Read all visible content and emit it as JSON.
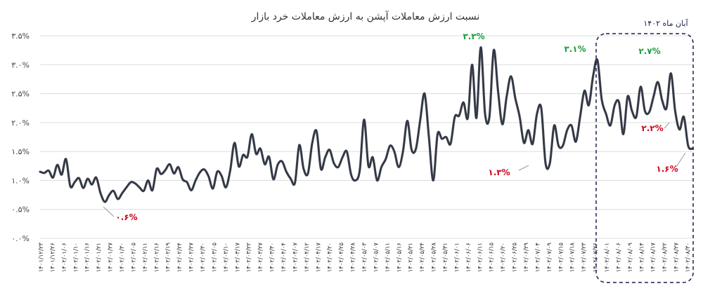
{
  "chart_data": {
    "type": "line",
    "title": "نسبت ارزش معاملات آپشن به ارزش معاملات خرد بازار",
    "ylim": [
      0,
      3.5
    ],
    "yticks": [
      "۰.۰%",
      "۰.۵%",
      "۱.۰%",
      "۱.۵%",
      "۲.۰%",
      "۲.۵%",
      "۳.۰%",
      "۳.۵%"
    ],
    "grid": true,
    "line_color": "#2d3340",
    "x_tick_labels": [
      "۱۴۰۱/۱۲/۲۳",
      "۱۴۰۱/۱۲/۲۶",
      "۱۴۰۲/۰۱/۰۶",
      "۱۴۰۲/۰۱/۱۰",
      "۱۴۰۲/۰۱/۱۶",
      "۱۴۰۲/۰۱/۲۱",
      "۱۴۰۲/۰۱/۲۷",
      "۱۴۰۲/۰۱/۳۰",
      "۱۴۰۲/۰۲/۰۵",
      "۱۴۰۲/۰۲/۱۱",
      "۱۴۰۲/۰۲/۱۶",
      "۱۴۰۲/۰۲/۱۹",
      "۱۴۰۲/۰۲/۲۴",
      "۱۴۰۲/۰۲/۲۷",
      "۱۴۰۲/۰۲/۳۰",
      "۱۴۰۲/۰۳/۰۵",
      "۱۴۰۲/۰۳/۱۰",
      "۱۴۰۲/۰۳/۱۷",
      "۱۴۰۲/۰۳/۲۲",
      "۱۴۰۲/۰۳/۲۷",
      "۱۴۰۲/۰۳/۳۰",
      "۱۴۰۲/۰۴/۰۴",
      "۱۴۰۲/۰۴/۰۷",
      "۱۴۰۲/۰۴/۱۲",
      "۱۴۰۲/۰۴/۱۷",
      "۱۴۰۲/۰۴/۲۰",
      "۱۴۰۲/۰۴/۲۵",
      "۱۴۰۲/۰۴/۲۸",
      "۱۴۰۲/۰۵/۰۳",
      "۱۴۰۲/۰۵/۰۷",
      "۱۴۰۲/۰۵/۱۱",
      "۱۴۰۲/۰۵/۱۶",
      "۱۴۰۲/۰۵/۲۱",
      "۱۴۰۲/۰۵/۲۴",
      "۱۴۰۲/۰۵/۲۸",
      "۱۴۰۲/۰۵/۳۱",
      "۱۴۰۲/۰۶/۰۱",
      "۱۴۰۲/۰۶/۰۶",
      "۱۴۰۲/۰۶/۱۱",
      "۱۴۰۲/۰۶/۱۵",
      "۱۴۰۲/۰۶/۲۰",
      "۱۴۰۲/۰۶/۲۵",
      "۱۴۰۲/۰۶/۲۹",
      "۱۴۰۲/۰۷/۰۴",
      "۱۴۰۲/۰۷/۰۹",
      "۱۴۰۲/۰۷/۱۵",
      "۱۴۰۲/۰۷/۱۸",
      "۱۴۰۲/۰۷/۲۳",
      "۱۴۰۲/۰۷/۲۶",
      "۱۴۰۲/۰۸/۰۱",
      "۱۴۰۲/۰۸/۰۶",
      "۱۴۰۲/۰۸/۰۹",
      "۱۴۰۲/۰۸/۱۴",
      "۱۴۰۲/۰۸/۱۷",
      "۱۴۰۲/۰۸/۲۲",
      "۱۴۰۲/۰۸/۲۷",
      "۱۴۰۲/۰۸/۳۰"
    ],
    "values": [
      1.15,
      1.13,
      1.17,
      1.05,
      1.27,
      1.1,
      1.37,
      0.9,
      0.97,
      1.04,
      0.87,
      1.03,
      0.93,
      1.05,
      0.78,
      0.63,
      0.75,
      0.82,
      0.68,
      0.78,
      0.88,
      0.97,
      0.95,
      0.88,
      0.82,
      1.0,
      0.83,
      1.2,
      1.11,
      1.18,
      1.28,
      1.12,
      1.23,
      1.02,
      0.97,
      0.83,
      1.0,
      1.14,
      1.19,
      1.07,
      0.86,
      1.15,
      1.08,
      0.88,
      1.17,
      1.65,
      1.24,
      1.44,
      1.41,
      1.8,
      1.46,
      1.55,
      1.28,
      1.41,
      1.02,
      1.27,
      1.33,
      1.15,
      1.03,
      0.96,
      1.61,
      1.2,
      1.12,
      1.65,
      1.85,
      1.2,
      1.4,
      1.53,
      1.3,
      1.23,
      1.4,
      1.5,
      1.1,
      1.0,
      1.18,
      2.05,
      1.25,
      1.4,
      1.0,
      1.23,
      1.37,
      1.6,
      1.5,
      1.23,
      1.5,
      2.03,
      1.53,
      1.55,
      2.05,
      2.5,
      1.75,
      1.0,
      1.8,
      1.72,
      1.75,
      1.63,
      2.1,
      2.12,
      2.35,
      2.08,
      3.0,
      2.08,
      3.3,
      2.15,
      2.1,
      3.25,
      2.55,
      1.97,
      2.45,
      2.8,
      2.42,
      2.1,
      1.65,
      1.87,
      1.63,
      2.15,
      2.25,
      1.3,
      1.3,
      1.95,
      1.6,
      1.6,
      1.87,
      1.95,
      1.67,
      2.1,
      2.55,
      2.3,
      2.8,
      3.08,
      2.4,
      2.15,
      1.95,
      2.3,
      2.35,
      1.8,
      2.45,
      2.2,
      2.1,
      2.62,
      2.2,
      2.18,
      2.45,
      2.7,
      2.38,
      2.25,
      2.85,
      2.2,
      1.88,
      2.1,
      1.6,
      1.55
    ],
    "annotations": [
      {
        "text": "۰.۶%",
        "color": "red"
      },
      {
        "text": "۳.۳%",
        "color": "green"
      },
      {
        "text": "۱.۳%",
        "color": "red"
      },
      {
        "text": "۳.۱%",
        "color": "green"
      },
      {
        "text": "۲.۷%",
        "color": "green"
      },
      {
        "text": "۲.۲%",
        "color": "red"
      },
      {
        "text": "۱.۶%",
        "color": "red"
      }
    ],
    "highlight": {
      "label": "آبان ماه ۱۴۰۲"
    }
  }
}
